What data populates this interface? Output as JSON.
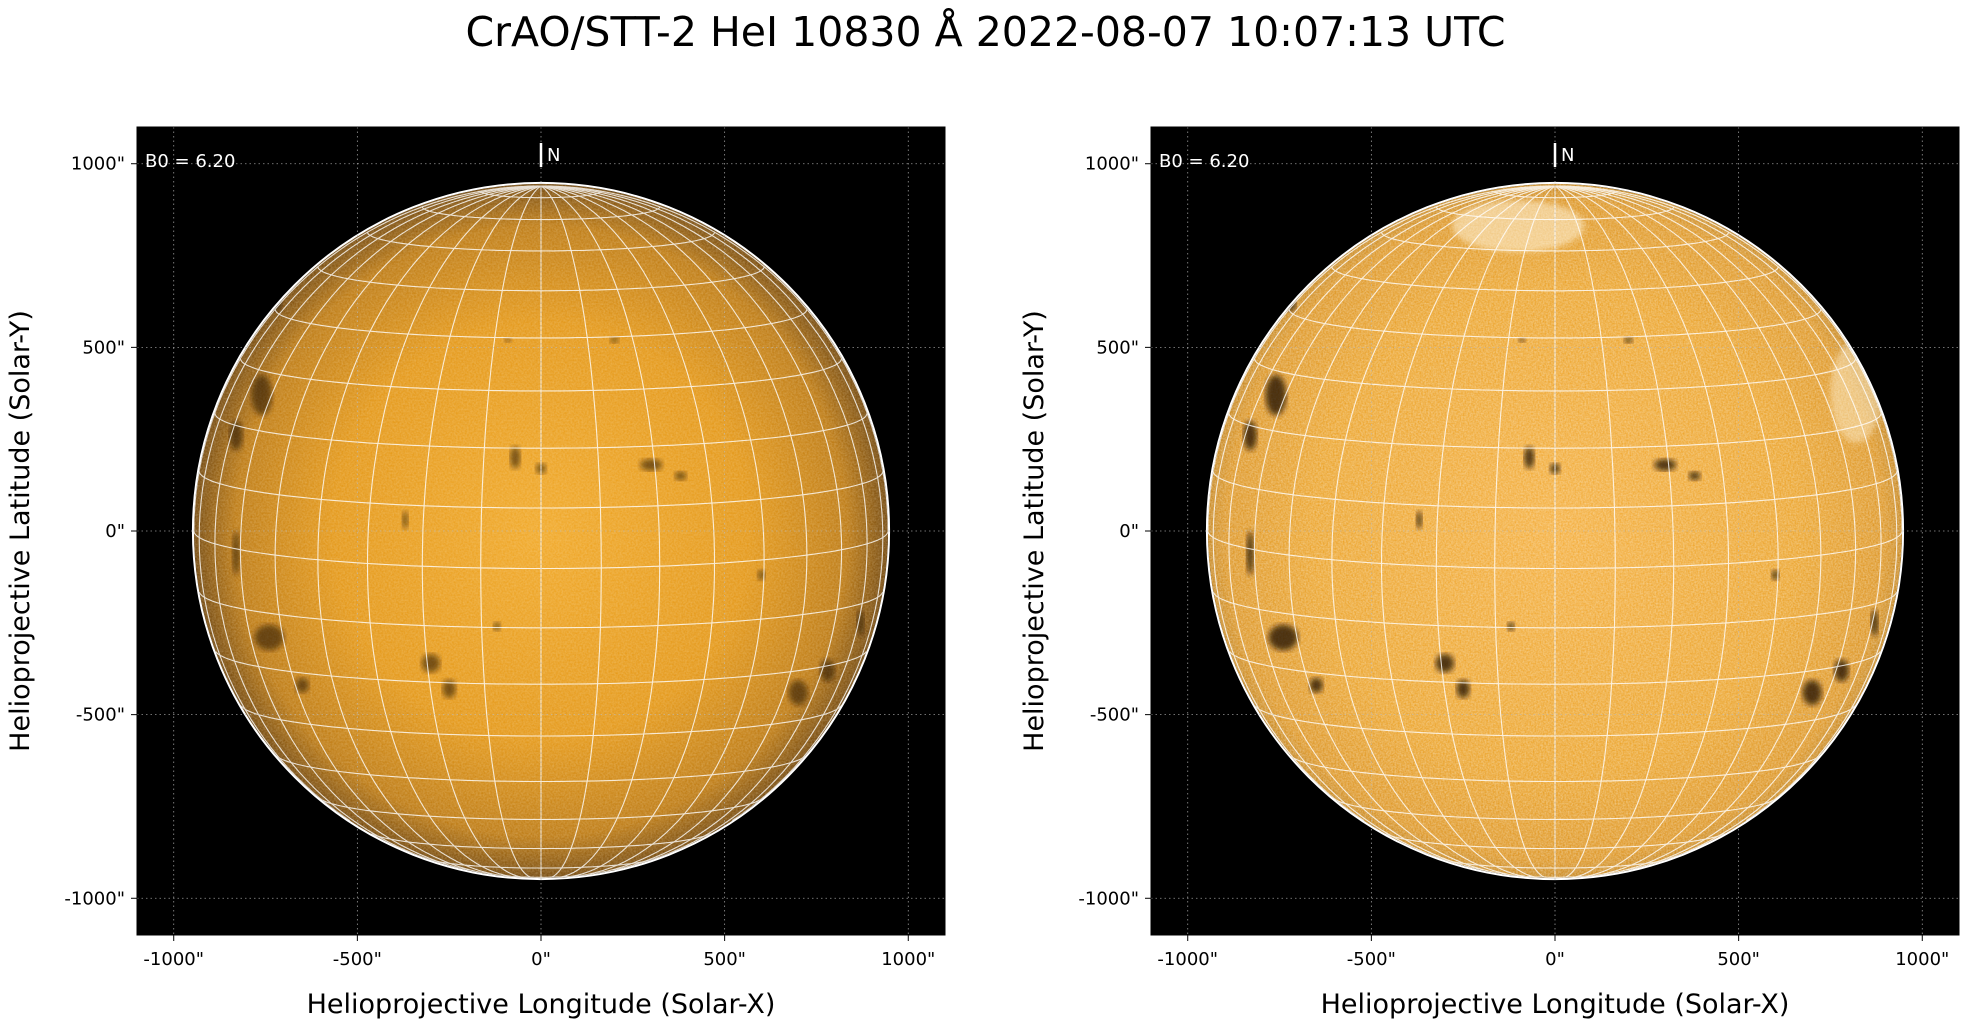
{
  "title": "CrAO/STT-2 HeI 10830 Å 2022-08-07 10:07:13 UTC",
  "panels": [
    {
      "id": "left",
      "variant": "normal",
      "b0_label": "B0 = 6.20",
      "north_label": "N",
      "xlabel": "Helioprojective Longitude (Solar-X)",
      "ylabel": "Helioprojective Latitude (Solar-Y)"
    },
    {
      "id": "right",
      "variant": "contrast-enhanced",
      "b0_label": "B0 = 6.20",
      "north_label": "N",
      "xlabel": "Helioprojective Longitude (Solar-X)",
      "ylabel": "Helioprojective Latitude (Solar-Y)"
    }
  ],
  "axes": {
    "x_ticks": [
      -1000,
      -500,
      0,
      500,
      1000
    ],
    "y_ticks": [
      1000,
      500,
      0,
      -500,
      -1000
    ],
    "x_tick_labels": [
      "-1000\"",
      "-500\"",
      "0\"",
      "500\"",
      "1000\""
    ],
    "y_tick_labels": [
      "1000\"",
      "500\"",
      "0\"",
      "-500\"",
      "-1000\""
    ],
    "xlim": [
      -1100,
      1100
    ],
    "ylim": [
      -1100,
      1100
    ],
    "solar_radius_arcsec": 945,
    "b0_deg": 6.2,
    "grid_spacing_deg": 10,
    "colors": {
      "disk_center": "#e89a10",
      "disk_limb": "#7a4a05",
      "sky": "#000000",
      "grid": "#ffffff"
    }
  }
}
